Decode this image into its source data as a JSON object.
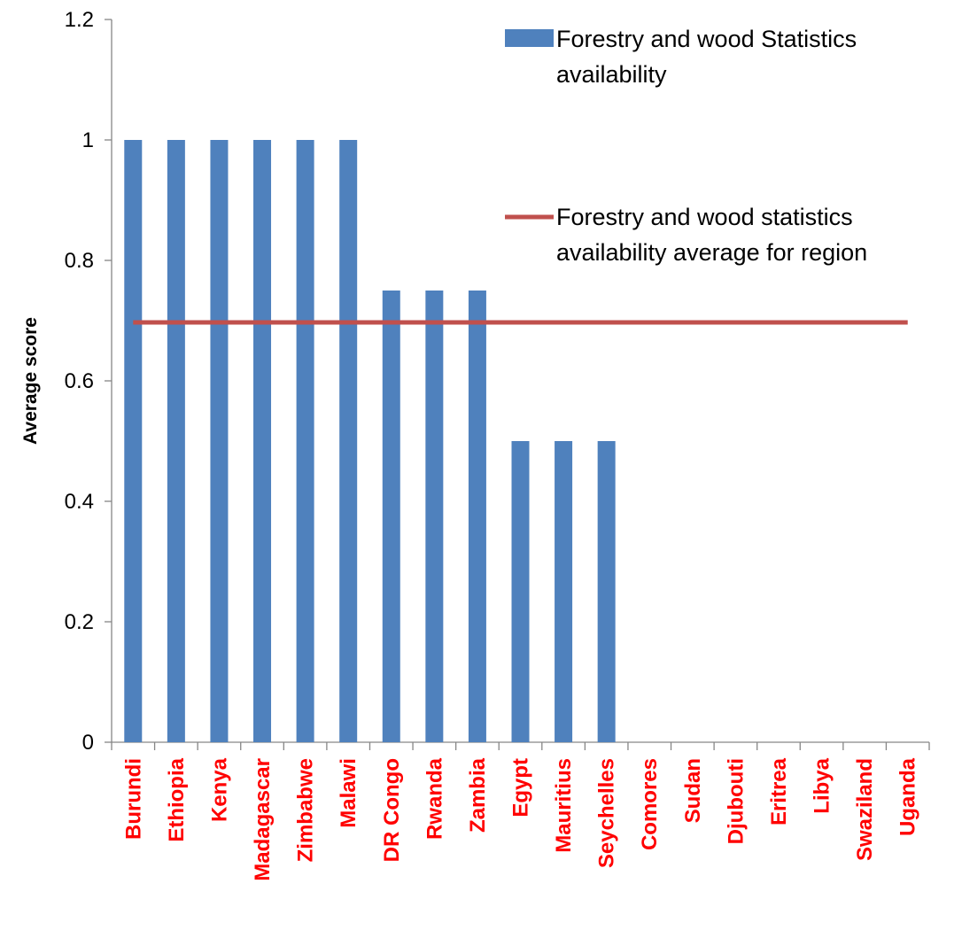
{
  "chart_data": {
    "type": "bar",
    "categories": [
      "Burundi",
      "Ethiopia",
      "Kenya",
      "Madagascar",
      "Zimbabwe",
      "Malawi",
      "DR Congo",
      "Rwanda",
      "Zambia",
      "Egypt",
      "Mauritius",
      "Seychelles",
      "Comores",
      "Sudan",
      "Djubouti",
      "Eritrea",
      "Libya",
      "Swaziland",
      "Uganda"
    ],
    "series": [
      {
        "name": "Forestry and wood Statistics availability",
        "kind": "bar",
        "color": "#4F81BD",
        "values": [
          1,
          1,
          1,
          1,
          1,
          1,
          0.75,
          0.75,
          0.75,
          0.5,
          0.5,
          0.5,
          0,
          0,
          0,
          0,
          0,
          0,
          0
        ]
      },
      {
        "name": "Forestry and wood statistics availability average for region",
        "kind": "line",
        "color": "#C0504D",
        "values": [
          0.697,
          0.697,
          0.697,
          0.697,
          0.697,
          0.697,
          0.697,
          0.697,
          0.697,
          0.697,
          0.697,
          0.697,
          0.697,
          0.697,
          0.697,
          0.697,
          0.697,
          0.697,
          0.697
        ]
      }
    ],
    "legend": {
      "bar_label_lines": [
        "Forestry and wood Statistics",
        "availability"
      ],
      "line_label_lines": [
        "Forestry and wood statistics",
        "availability average for region"
      ],
      "position": "top-right"
    },
    "yticks": [
      "0",
      "0.2",
      "0.4",
      "0.6",
      "0.8",
      "1",
      "1.2"
    ],
    "ylabel": "Average score",
    "xlabel": "",
    "title": "",
    "ylim": [
      0,
      1.2
    ],
    "category_label_color": "#FF0000",
    "grid": false
  }
}
